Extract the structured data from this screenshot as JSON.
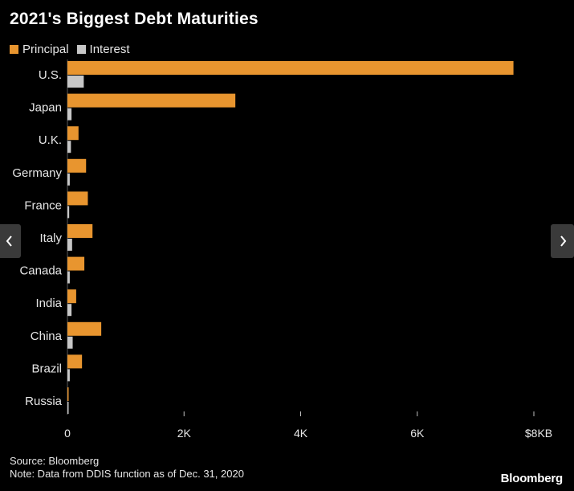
{
  "chart_data": {
    "type": "bar",
    "orientation": "horizontal",
    "title": "2021's Biggest Debt Maturities",
    "categories": [
      "U.S.",
      "Japan",
      "U.K.",
      "Germany",
      "France",
      "Italy",
      "Canada",
      "India",
      "China",
      "Brazil",
      "Russia"
    ],
    "series": [
      {
        "name": "Principal",
        "color": "#e8952f",
        "values": [
          7650,
          2880,
          190,
          320,
          350,
          430,
          290,
          150,
          580,
          250,
          20
        ]
      },
      {
        "name": "Interest",
        "color": "#c7c7c7",
        "values": [
          280,
          70,
          60,
          40,
          30,
          80,
          40,
          70,
          90,
          40,
          10
        ]
      }
    ],
    "xlim": [
      0,
      8000
    ],
    "xticks": [
      0,
      2000,
      4000,
      6000,
      8000
    ],
    "xtick_labels": [
      "0",
      "2K",
      "4K",
      "6K",
      "$8KB"
    ],
    "xlabel": "",
    "ylabel": "",
    "legend_position": "top-left"
  },
  "footer": {
    "source": "Source: Bloomberg",
    "note": "Note: Data from DDIS function as of Dec. 31, 2020"
  },
  "brand": "Bloomberg",
  "nav": {
    "prev_icon": "chevron-left-icon",
    "next_icon": "chevron-right-icon"
  }
}
